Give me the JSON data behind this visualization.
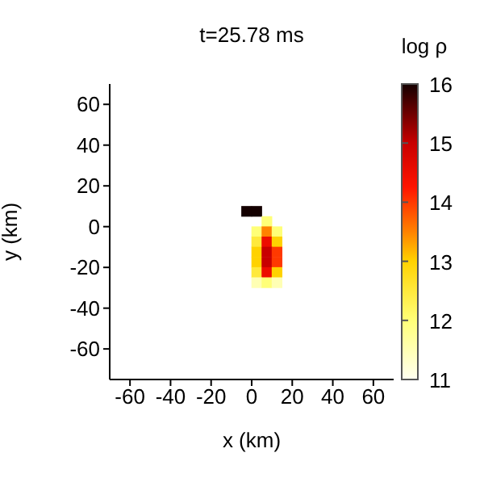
{
  "chart_data": {
    "type": "scatter",
    "title": "t=25.78 ms",
    "xlabel": "x (km)",
    "ylabel": "y (km)",
    "clabel": "log ρ",
    "marker": "square",
    "xlim": [
      -70,
      70
    ],
    "ylim": [
      -75,
      70
    ],
    "xticks": [
      -60,
      -40,
      -20,
      0,
      20,
      40,
      60
    ],
    "yticks": [
      -60,
      -40,
      -20,
      0,
      20,
      40,
      60
    ],
    "clim": [
      11,
      16
    ],
    "cticks": [
      11,
      12,
      13,
      14,
      15,
      16
    ],
    "x": [
      -2.5,
      2.5,
      7.5,
      2.5,
      7.5,
      12.5,
      2.5,
      7.5,
      12.5,
      2.5,
      7.5,
      12.5,
      2.5,
      7.5,
      12.5,
      2.5,
      7.5,
      12.5,
      2.5,
      7.5,
      12.5
    ],
    "values": [
      7.5,
      7.5,
      2.5,
      -2.5,
      -2.5,
      -2.5,
      -7.5,
      -7.5,
      -7.5,
      -12.5,
      -12.5,
      -12.5,
      -17.5,
      -17.5,
      -17.5,
      -22.5,
      -22.5,
      -22.5,
      -27.5,
      -27.5,
      -27.5
    ],
    "cvalues": [
      16,
      16,
      12,
      12,
      13.5,
      12,
      12.5,
      14.5,
      13,
      13,
      15,
      14,
      13,
      15,
      14,
      12.5,
      14.5,
      13,
      11.5,
      12,
      11.5
    ]
  }
}
